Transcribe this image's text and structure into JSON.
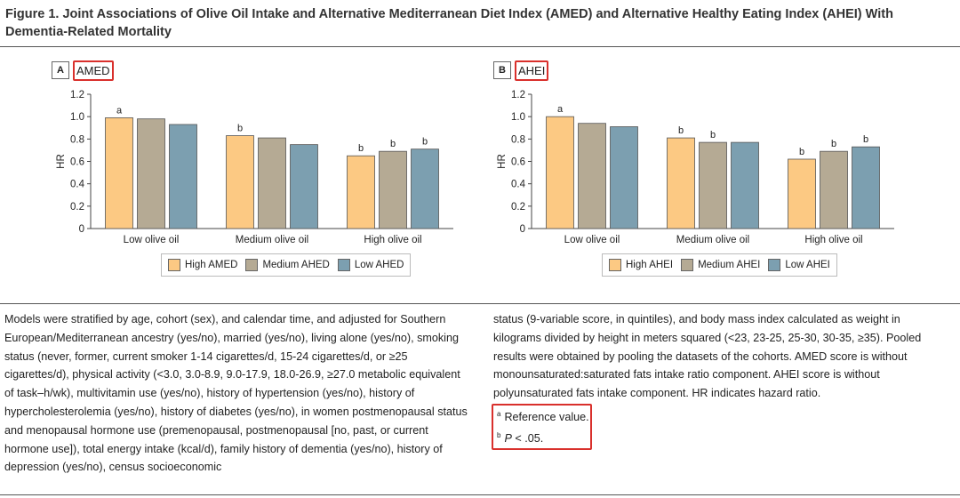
{
  "figure": {
    "title": "Figure 1. Joint Associations of Olive Oil Intake and Alternative Mediterranean Diet Index (AMED) and Alternative Healthy Eating Index (AHEI) With Dementia-Related Mortality"
  },
  "colors": {
    "high": "#fcc983",
    "medium": "#b5aa94",
    "low": "#7c9fb0",
    "highlight": "#d9302c"
  },
  "chart_data": [
    {
      "type": "bar",
      "panel": "A",
      "panel_label": "AMED",
      "ylabel": "HR",
      "ylim": [
        0,
        1.2
      ],
      "yticks": [
        "0",
        "0.2",
        "0.4",
        "0.6",
        "0.8",
        "1.0",
        "1.2"
      ],
      "categories": [
        "Low olive oil",
        "Medium olive oil",
        "High olive oil"
      ],
      "series": [
        {
          "name": "High AMED",
          "values": [
            0.99,
            0.83,
            0.65
          ],
          "markers": [
            "a",
            "b",
            "b"
          ]
        },
        {
          "name": "Medium AHED",
          "values": [
            0.98,
            0.81,
            0.69
          ],
          "markers": [
            "",
            "",
            "b"
          ]
        },
        {
          "name": "Low AHED",
          "values": [
            0.93,
            0.75,
            0.71
          ],
          "markers": [
            "",
            "",
            "b"
          ]
        }
      ],
      "legend_position": "bottom"
    },
    {
      "type": "bar",
      "panel": "B",
      "panel_label": "AHEI",
      "ylabel": "HR",
      "ylim": [
        0,
        1.2
      ],
      "yticks": [
        "0",
        "0.2",
        "0.4",
        "0.6",
        "0.8",
        "1.0",
        "1.2"
      ],
      "categories": [
        "Low olive oil",
        "Medium olive oil",
        "High olive oil"
      ],
      "series": [
        {
          "name": "High AHEI",
          "values": [
            1.0,
            0.81,
            0.62
          ],
          "markers": [
            "a",
            "b",
            "b"
          ]
        },
        {
          "name": "Medium AHEI",
          "values": [
            0.94,
            0.77,
            0.69
          ],
          "markers": [
            "",
            "b",
            "b"
          ]
        },
        {
          "name": "Low AHEI",
          "values": [
            0.91,
            0.77,
            0.73
          ],
          "markers": [
            "",
            "",
            "b"
          ]
        }
      ],
      "legend_position": "bottom"
    }
  ],
  "notes": {
    "left": "Models were stratified by age, cohort (sex), and calendar time, and adjusted for Southern European/Mediterranean ancestry (yes/no), married (yes/no), living alone (yes/no), smoking status (never, former, current smoker 1-14 cigarettes/d, 15-24 cigarettes/d, or ≥25 cigarettes/d), physical activity (<3.0, 3.0-8.9, 9.0-17.9, 18.0-26.9, ≥27.0 metabolic equivalent of task–h/wk), multivitamin use (yes/no), history of hypertension (yes/no), history of hypercholesterolemia (yes/no), history of diabetes (yes/no), in women postmenopausal status and menopausal hormone use (premenopausal, postmenopausal [no, past, or current hormone use]), total energy intake (kcal/d), family history of dementia (yes/no), history of depression (yes/no), census socioeconomic",
    "right": "status (9-variable score, in quintiles), and body mass index calculated as weight in kilograms divided by height in meters squared (<23, 23-25, 25-30, 30-35, ≥35). Pooled results were obtained by pooling the datasets of the cohorts. AMED score is without monounsaturated:saturated fats intake ratio component. AHEI score is without polyunsaturated fats intake component. HR indicates hazard ratio.",
    "footnotes": [
      {
        "mark": "a",
        "text": "Reference value."
      },
      {
        "mark": "b",
        "text_italic": "P",
        "text": " < .05."
      }
    ]
  }
}
